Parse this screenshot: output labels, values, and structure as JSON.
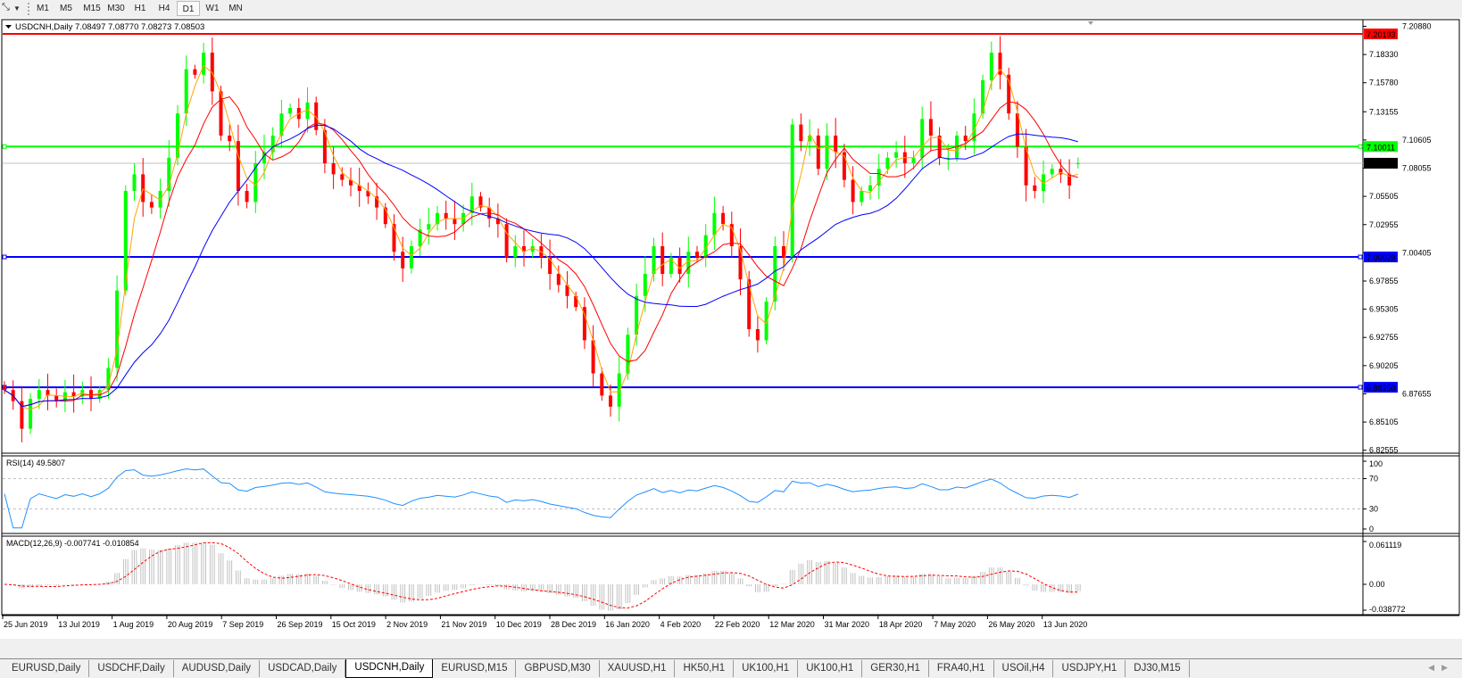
{
  "toolbar": {
    "timeframes": [
      "M1",
      "M5",
      "M15",
      "M30",
      "H1",
      "H4",
      "D1",
      "W1",
      "MN"
    ],
    "active_timeframe": "D1"
  },
  "chart": {
    "header": "USDCNH,Daily  7.08497 7.08770 7.08273 7.08503",
    "symbol": "USDCNH",
    "last_bar": {
      "open": 7.08497,
      "high": 7.0877,
      "low": 7.08273,
      "close": 7.08503
    },
    "colors": {
      "bull": "#00ff00",
      "bear": "#ff0000",
      "ma_fast": "#ffa500",
      "ma_mid": "#ff0000",
      "ma_slow": "#0000ff",
      "rsi": "#1e90ff",
      "macd_hist": "#c0c0c0",
      "macd_signal": "#ff0000"
    },
    "price_axis": [
      "7.20880",
      "7.18330",
      "7.15780",
      "7.13155",
      "7.10605",
      "7.08055",
      "7.05505",
      "7.02955",
      "7.00405",
      "6.97855",
      "6.95305",
      "6.92755",
      "6.90205",
      "6.87655",
      "6.85105",
      "6.82555"
    ],
    "price_range": [
      6.82555,
      7.2088
    ],
    "hlines": [
      {
        "price": 7.20193,
        "label": "7.20193",
        "color": "#ff0000"
      },
      {
        "price": 7.10011,
        "label": "7.10011",
        "color": "#00ff00"
      },
      {
        "price": 7.00029,
        "label": "7.00029",
        "color": "#0000ff"
      },
      {
        "price": 6.8825,
        "label": "6.88250",
        "color": "#0000ff"
      }
    ],
    "bid": {
      "price": 7.08503,
      "label": "7.08503"
    },
    "dates": [
      "25 Jun 2019",
      "13 Jul 2019",
      "1 Aug 2019",
      "20 Aug 2019",
      "7 Sep 2019",
      "26 Sep 2019",
      "15 Oct 2019",
      "2 Nov 2019",
      "21 Nov 2019",
      "10 Dec 2019",
      "28 Dec 2019",
      "16 Jan 2020",
      "4 Feb 2020",
      "22 Feb 2020",
      "12 Mar 2020",
      "31 Mar 2020",
      "18 Apr 2020",
      "7 May 2020",
      "26 May 2020",
      "13 Jun 2020"
    ],
    "closes": [
      6.88,
      6.87,
      6.845,
      6.872,
      6.88,
      6.875,
      6.87,
      6.878,
      6.874,
      6.88,
      6.872,
      6.88,
      6.9,
      6.97,
      7.06,
      7.075,
      7.05,
      7.045,
      7.06,
      7.09,
      7.13,
      7.17,
      7.165,
      7.185,
      7.15,
      7.11,
      7.105,
      7.06,
      7.05,
      7.085,
      7.095,
      7.11,
      7.13,
      7.135,
      7.125,
      7.14,
      7.115,
      7.085,
      7.075,
      7.07,
      7.065,
      7.06,
      7.055,
      7.045,
      7.03,
      7.005,
      6.99,
      7.01,
      7.025,
      7.03,
      7.04,
      7.035,
      7.03,
      7.04,
      7.055,
      7.045,
      7.035,
      7.03,
      7.0,
      7.01,
      7.005,
      7.01,
      7.0,
      6.985,
      6.975,
      6.965,
      6.955,
      6.925,
      6.895,
      6.875,
      6.865,
      6.895,
      6.93,
      6.965,
      6.985,
      7.01,
      6.985,
      7.0,
      6.985,
      7.005,
      7.0,
      7.02,
      7.04,
      7.03,
      7.01,
      6.98,
      6.935,
      6.925,
      6.96,
      7.01,
      7.0,
      7.12,
      7.105,
      7.11,
      7.08,
      7.11,
      7.095,
      7.07,
      7.05,
      7.06,
      7.065,
      7.08,
      7.09,
      7.095,
      7.085,
      7.09,
      7.125,
      7.11,
      7.09,
      7.09,
      7.11,
      7.105,
      7.13,
      7.16,
      7.185,
      7.165,
      7.13,
      7.1,
      7.065,
      7.06,
      7.075,
      7.08,
      7.075,
      7.065,
      7.085
    ]
  },
  "rsi": {
    "header": "RSI(14) 49.5807",
    "levels": [
      70,
      30
    ],
    "axis": [
      "100",
      "70",
      "30",
      "0"
    ]
  },
  "macd": {
    "header": "MACD(12,26,9) -0.007741 -0.010854",
    "axis": [
      "0.061119",
      "0.00",
      "-0.038772"
    ],
    "range": [
      -0.038772,
      0.061119
    ]
  },
  "tabs": [
    "EURUSD,Daily",
    "USDCHF,Daily",
    "AUDUSD,Daily",
    "USDCAD,Daily",
    "USDCNH,Daily",
    "EURUSD,M15",
    "GBPUSD,M30",
    "XAUUSD,H1",
    "HK50,H1",
    "UK100,H1",
    "UK100,H1",
    "GER30,H1",
    "FRA40,H1",
    "USOil,H4",
    "USDJPY,H1",
    "DJ30,M15"
  ],
  "active_tab": "USDCNH,Daily"
}
